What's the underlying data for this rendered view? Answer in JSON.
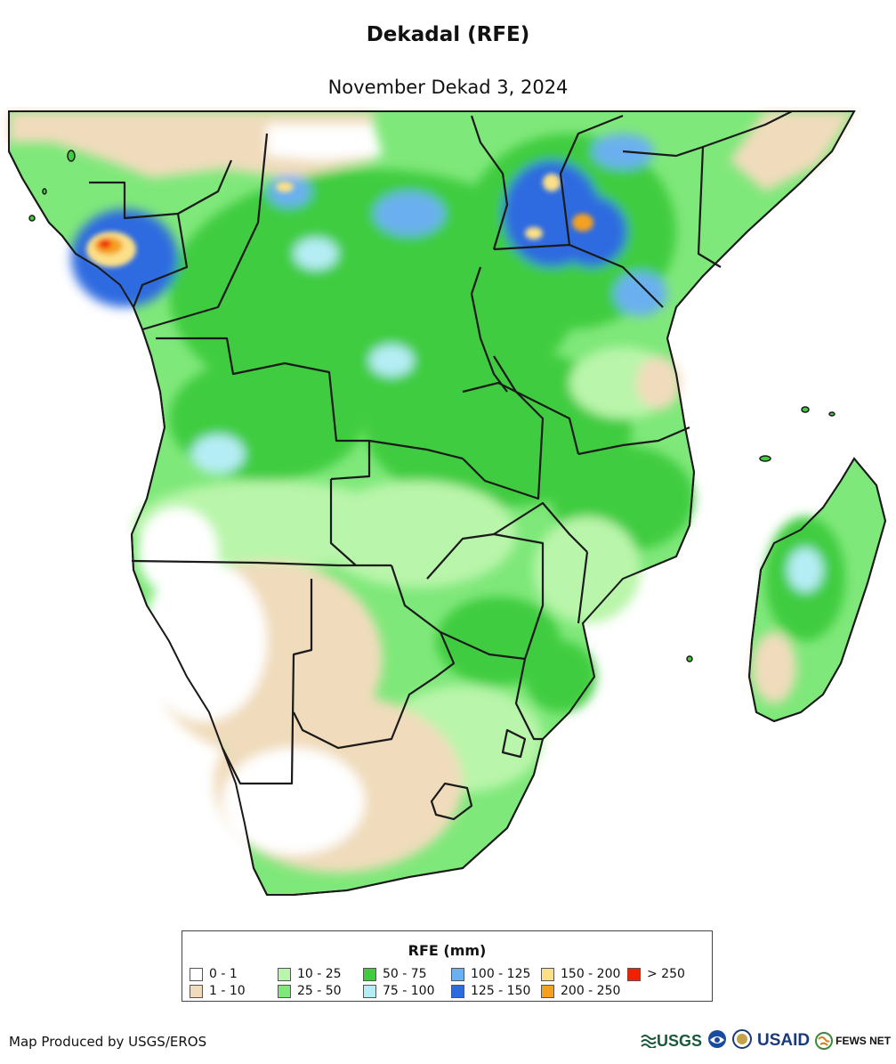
{
  "header": {
    "title": "Dekadal (RFE)",
    "subtitle": "November Dekad 3, 2024"
  },
  "legend": {
    "title": "RFE (mm)",
    "items": [
      {
        "label": "0 - 1",
        "color": "#ffffff"
      },
      {
        "label": "1 - 10",
        "color": "#f0dcbc"
      },
      {
        "label": "10 - 25",
        "color": "#b9f5aa"
      },
      {
        "label": "25 - 50",
        "color": "#7fe87a"
      },
      {
        "label": "50 - 75",
        "color": "#3fcc3f"
      },
      {
        "label": "75 - 100",
        "color": "#b5edf5"
      },
      {
        "label": "100 - 125",
        "color": "#6bb0f0"
      },
      {
        "label": "125 - 150",
        "color": "#2d6be0"
      },
      {
        "label": "150 - 200",
        "color": "#fce088"
      },
      {
        "label": "200 - 250",
        "color": "#f5a020"
      },
      {
        "label": "> 250",
        "color": "#f02000"
      }
    ]
  },
  "footer": {
    "credit": "Map Produced by USGS/EROS",
    "logos": [
      "USGS",
      "NOAA",
      "USAID",
      "FEWS NET"
    ]
  }
}
